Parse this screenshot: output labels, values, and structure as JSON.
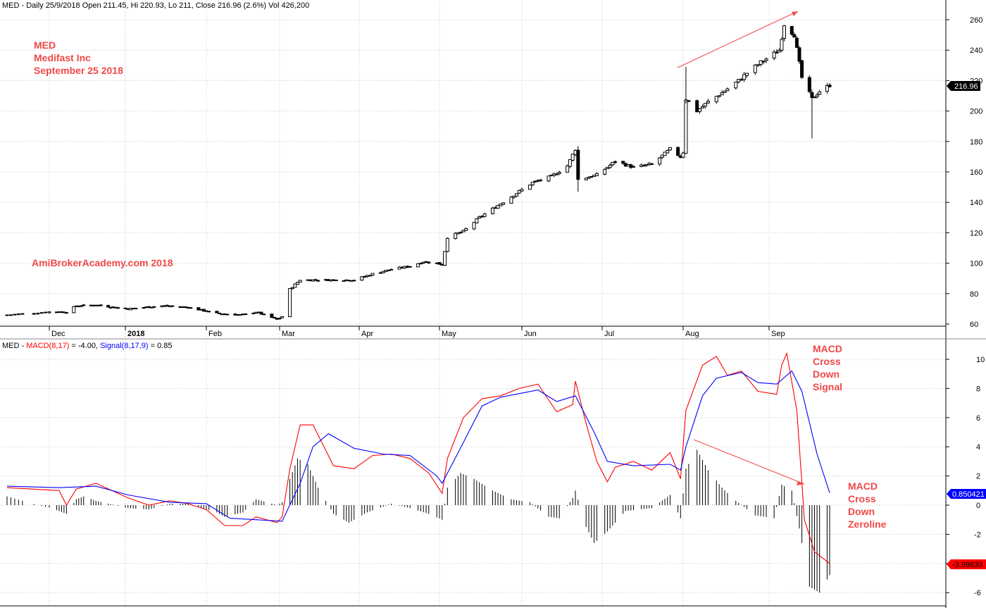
{
  "price_panel": {
    "header": "MED - Daily 25/9/2018 Open 211.45, Hi 220.93, Lo 211, Close 216.96 (2.6%) Vol 426,200",
    "annotations": [
      "MED",
      "Medifast Inc",
      "September 25 2018"
    ],
    "watermark": "AmiBrokerAcademy.com 2018",
    "last_price_tag": "216.96",
    "y_ticks": [
      60,
      80,
      100,
      120,
      140,
      160,
      180,
      200,
      220,
      240,
      260
    ]
  },
  "macd_panel": {
    "header_prefix": "MED - ",
    "header_macd": "MACD(8,17)",
    "header_macd_value": " = -4.00, ",
    "header_signal": "Signal(8,17,9)",
    "header_signal_value": " = 0.85",
    "y_ticks": [
      -6,
      -4,
      -2,
      0,
      2,
      4,
      6,
      8,
      10
    ],
    "signal_tag": "0.850421",
    "macd_tag": "-3.99833",
    "note_cross_signal": [
      "MACD",
      "Cross",
      "Down",
      "Signal"
    ],
    "note_cross_zero": [
      "MACD",
      "Cross",
      "Down",
      "Zeroline"
    ]
  },
  "x_axis": {
    "months": [
      "Dec",
      "2018",
      "Feb",
      "Mar",
      "Apr",
      "May",
      "Jun",
      "Jul",
      "Aug",
      "Sep"
    ]
  },
  "colors": {
    "macd_line": "#ff0000",
    "signal_line": "#0000ff",
    "annotation": "#f04848",
    "grid": "#c8c8c8",
    "signal_tag_bg": "#0000ff",
    "macd_tag_bg": "#ff0000",
    "price_tag_bg": "#000000"
  },
  "chart_data": [
    {
      "type": "candlestick",
      "title": "MED - Daily 25/9/2018 Open 211.45, Hi 220.93, Lo 211, Close 216.96 (2.6%) Vol 426,200",
      "ylim": [
        55,
        265
      ],
      "series": [
        {
          "name": "MED",
          "anchors": [
            [
              "2017-11-20",
              66
            ],
            [
              "2017-12-01",
              68
            ],
            [
              "2017-12-08",
              68
            ],
            [
              "2017-12-12",
              72
            ],
            [
              "2017-12-20",
              72.5
            ],
            [
              "2018-01-02",
              70
            ],
            [
              "2018-01-15",
              72
            ],
            [
              "2018-01-25",
              71
            ],
            [
              "2018-02-05",
              67
            ],
            [
              "2018-02-15",
              66
            ],
            [
              "2018-02-20",
              68
            ],
            [
              "2018-02-28",
              63
            ],
            [
              "2018-03-02",
              65
            ],
            [
              "2018-03-05",
              83
            ],
            [
              "2018-03-09",
              89
            ],
            [
              "2018-03-20",
              89
            ],
            [
              "2018-03-30",
              89
            ],
            [
              "2018-04-06",
              93
            ],
            [
              "2018-04-13",
              96
            ],
            [
              "2018-04-20",
              98
            ],
            [
              "2018-04-25",
              101
            ],
            [
              "2018-04-30",
              100
            ],
            [
              "2018-05-02",
              99
            ],
            [
              "2018-05-04",
              117
            ],
            [
              "2018-05-10",
              121
            ],
            [
              "2018-05-16",
              130
            ],
            [
              "2018-05-23",
              138
            ],
            [
              "2018-05-30",
              146
            ],
            [
              "2018-06-05",
              153
            ],
            [
              "2018-06-12",
              157
            ],
            [
              "2018-06-18",
              164
            ],
            [
              "2018-06-21",
              175
            ],
            [
              "2018-06-22",
              155
            ],
            [
              "2018-06-29",
              158
            ],
            [
              "2018-07-06",
              167
            ],
            [
              "2018-07-13",
              163
            ],
            [
              "2018-07-20",
              165
            ],
            [
              "2018-07-25",
              172
            ],
            [
              "2018-07-27",
              175
            ],
            [
              "2018-07-31",
              170
            ],
            [
              "2018-08-01",
              173
            ],
            [
              "2018-08-02",
              208
            ],
            [
              "2018-08-06",
              200
            ],
            [
              "2018-08-10",
              206
            ],
            [
              "2018-08-15",
              212
            ],
            [
              "2018-08-21",
              220
            ],
            [
              "2018-08-24",
              225
            ],
            [
              "2018-08-29",
              232
            ],
            [
              "2018-09-05",
              240
            ],
            [
              "2018-09-07",
              257
            ],
            [
              "2018-09-11",
              250
            ],
            [
              "2018-09-14",
              222
            ],
            [
              "2018-09-18",
              208
            ],
            [
              "2018-09-21",
              213
            ],
            [
              "2018-09-25",
              216.96
            ]
          ]
        }
      ]
    },
    {
      "type": "line",
      "title": "MACD(8,17) = -4.00, Signal(8,17,9) = 0.85",
      "ylim": [
        -6.5,
        11
      ],
      "series": [
        {
          "name": "MACD(8,17)",
          "points": [
            [
              "2017-11-20",
              1.2
            ],
            [
              "2017-12-05",
              1.0
            ],
            [
              "2017-12-08",
              0.0
            ],
            [
              "2017-12-12",
              1.1
            ],
            [
              "2017-12-20",
              1.5
            ],
            [
              "2018-01-02",
              0.5
            ],
            [
              "2018-01-10",
              0.0
            ],
            [
              "2018-01-18",
              0.3
            ],
            [
              "2018-01-25",
              0.1
            ],
            [
              "2018-02-01",
              -0.3
            ],
            [
              "2018-02-08",
              -1.4
            ],
            [
              "2018-02-15",
              -1.4
            ],
            [
              "2018-02-20",
              -0.8
            ],
            [
              "2018-02-28",
              -1.2
            ],
            [
              "2018-03-02",
              -0.8
            ],
            [
              "2018-03-05",
              2.5
            ],
            [
              "2018-03-09",
              5.5
            ],
            [
              "2018-03-14",
              5.5
            ],
            [
              "2018-03-22",
              2.7
            ],
            [
              "2018-03-30",
              2.5
            ],
            [
              "2018-04-06",
              3.4
            ],
            [
              "2018-04-13",
              3.5
            ],
            [
              "2018-04-20",
              3.2
            ],
            [
              "2018-04-27",
              2.2
            ],
            [
              "2018-05-02",
              0.8
            ],
            [
              "2018-05-04",
              3.2
            ],
            [
              "2018-05-10",
              6.0
            ],
            [
              "2018-05-17",
              7.3
            ],
            [
              "2018-05-24",
              7.5
            ],
            [
              "2018-05-31",
              8.0
            ],
            [
              "2018-06-07",
              8.3
            ],
            [
              "2018-06-14",
              6.4
            ],
            [
              "2018-06-20",
              6.9
            ],
            [
              "2018-06-21",
              8.5
            ],
            [
              "2018-06-25",
              5.6
            ],
            [
              "2018-06-29",
              3.0
            ],
            [
              "2018-07-03",
              1.6
            ],
            [
              "2018-07-06",
              2.6
            ],
            [
              "2018-07-13",
              3.0
            ],
            [
              "2018-07-20",
              2.4
            ],
            [
              "2018-07-27",
              3.6
            ],
            [
              "2018-07-31",
              1.8
            ],
            [
              "2018-08-02",
              6.5
            ],
            [
              "2018-08-08",
              9.6
            ],
            [
              "2018-08-13",
              10.2
            ],
            [
              "2018-08-17",
              8.9
            ],
            [
              "2018-08-22",
              9.2
            ],
            [
              "2018-08-28",
              7.8
            ],
            [
              "2018-09-04",
              7.6
            ],
            [
              "2018-09-06",
              9.6
            ],
            [
              "2018-09-08",
              10.4
            ],
            [
              "2018-09-12",
              6.5
            ],
            [
              "2018-09-15",
              -1.0
            ],
            [
              "2018-09-19",
              -3.2
            ],
            [
              "2018-09-25",
              -4.0
            ]
          ]
        },
        {
          "name": "Signal(8,17,9)",
          "points": [
            [
              "2017-11-20",
              1.3
            ],
            [
              "2017-12-05",
              1.2
            ],
            [
              "2017-12-20",
              1.3
            ],
            [
              "2018-01-02",
              0.7
            ],
            [
              "2018-01-18",
              0.2
            ],
            [
              "2018-02-01",
              0.1
            ],
            [
              "2018-02-10",
              -0.9
            ],
            [
              "2018-02-20",
              -1.0
            ],
            [
              "2018-03-02",
              -1.1
            ],
            [
              "2018-03-09",
              1.5
            ],
            [
              "2018-03-14",
              4.0
            ],
            [
              "2018-03-20",
              4.9
            ],
            [
              "2018-03-30",
              3.9
            ],
            [
              "2018-04-10",
              3.5
            ],
            [
              "2018-04-20",
              3.4
            ],
            [
              "2018-04-30",
              2.0
            ],
            [
              "2018-05-02",
              1.5
            ],
            [
              "2018-05-10",
              4.3
            ],
            [
              "2018-05-17",
              6.8
            ],
            [
              "2018-05-24",
              7.4
            ],
            [
              "2018-06-07",
              7.9
            ],
            [
              "2018-06-14",
              7.1
            ],
            [
              "2018-06-21",
              7.5
            ],
            [
              "2018-06-28",
              5.0
            ],
            [
              "2018-07-03",
              3.0
            ],
            [
              "2018-07-13",
              2.7
            ],
            [
              "2018-07-27",
              2.8
            ],
            [
              "2018-07-31",
              2.4
            ],
            [
              "2018-08-02",
              4.0
            ],
            [
              "2018-08-08",
              7.5
            ],
            [
              "2018-08-13",
              8.7
            ],
            [
              "2018-08-22",
              9.1
            ],
            [
              "2018-08-28",
              8.4
            ],
            [
              "2018-09-04",
              8.3
            ],
            [
              "2018-09-10",
              9.2
            ],
            [
              "2018-09-14",
              7.8
            ],
            [
              "2018-09-20",
              3.5
            ],
            [
              "2018-09-25",
              0.85
            ]
          ]
        }
      ],
      "histogram": [
        [
          "2017-11-20",
          0.6
        ],
        [
          "2017-11-28",
          0.0
        ],
        [
          "2017-12-05",
          -0.4
        ],
        [
          "2017-12-08",
          -0.6
        ],
        [
          "2017-12-12",
          0.4
        ],
        [
          "2017-12-15",
          0.6
        ],
        [
          "2017-12-20",
          0.3
        ],
        [
          "2018-01-02",
          -0.2
        ],
        [
          "2018-01-10",
          -0.3
        ],
        [
          "2018-01-18",
          0.1
        ],
        [
          "2018-01-25",
          0.1
        ],
        [
          "2018-02-05",
          -0.5
        ],
        [
          "2018-02-08",
          -0.8
        ],
        [
          "2018-02-15",
          -0.5
        ],
        [
          "2018-02-20",
          0.4
        ],
        [
          "2018-02-28",
          0.0
        ],
        [
          "2018-03-02",
          0.2
        ],
        [
          "2018-03-05",
          1.8
        ],
        [
          "2018-03-08",
          3.2
        ],
        [
          "2018-03-12",
          2.8
        ],
        [
          "2018-03-16",
          1.2
        ],
        [
          "2018-03-22",
          -0.6
        ],
        [
          "2018-03-28",
          -1.2
        ],
        [
          "2018-04-04",
          -0.5
        ],
        [
          "2018-04-13",
          0.1
        ],
        [
          "2018-04-20",
          -0.2
        ],
        [
          "2018-04-27",
          -0.6
        ],
        [
          "2018-05-02",
          -1.0
        ],
        [
          "2018-05-04",
          1.2
        ],
        [
          "2018-05-09",
          2.2
        ],
        [
          "2018-05-14",
          1.8
        ],
        [
          "2018-05-21",
          1.0
        ],
        [
          "2018-05-28",
          0.4
        ],
        [
          "2018-06-04",
          0.2
        ],
        [
          "2018-06-11",
          -0.8
        ],
        [
          "2018-06-15",
          -0.9
        ],
        [
          "2018-06-20",
          0.5
        ],
        [
          "2018-06-21",
          1.0
        ],
        [
          "2018-06-25",
          -1.5
        ],
        [
          "2018-06-28",
          -2.6
        ],
        [
          "2018-07-03",
          -1.8
        ],
        [
          "2018-07-10",
          -0.4
        ],
        [
          "2018-07-20",
          -0.2
        ],
        [
          "2018-07-27",
          0.7
        ],
        [
          "2018-07-31",
          -0.9
        ],
        [
          "2018-08-02",
          2.5
        ],
        [
          "2018-08-06",
          3.8
        ],
        [
          "2018-08-10",
          2.4
        ],
        [
          "2018-08-15",
          1.2
        ],
        [
          "2018-08-20",
          0.3
        ],
        [
          "2018-08-27",
          -0.7
        ],
        [
          "2018-09-03",
          -0.9
        ],
        [
          "2018-09-06",
          1.4
        ],
        [
          "2018-09-10",
          1.0
        ],
        [
          "2018-09-13",
          -1.6
        ],
        [
          "2018-09-17",
          -5.6
        ],
        [
          "2018-09-21",
          -6.0
        ],
        [
          "2018-09-25",
          -4.8
        ]
      ]
    }
  ]
}
